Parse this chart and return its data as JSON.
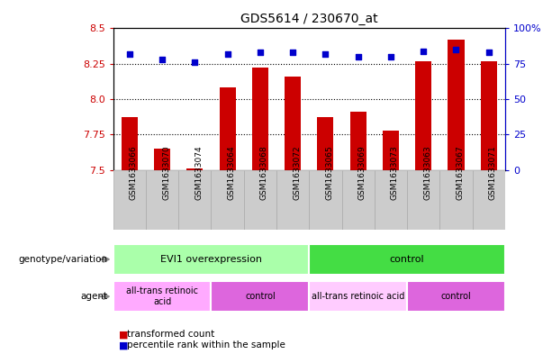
{
  "title": "GDS5614 / 230670_at",
  "samples": [
    "GSM1633066",
    "GSM1633070",
    "GSM1633074",
    "GSM1633064",
    "GSM1633068",
    "GSM1633072",
    "GSM1633065",
    "GSM1633069",
    "GSM1633073",
    "GSM1633063",
    "GSM1633067",
    "GSM1633071"
  ],
  "transformed_count": [
    7.87,
    7.65,
    7.51,
    8.08,
    8.22,
    8.16,
    7.87,
    7.91,
    7.78,
    8.27,
    8.42,
    8.27
  ],
  "percentile_rank": [
    82,
    78,
    76,
    82,
    83,
    83,
    82,
    80,
    80,
    84,
    85,
    83
  ],
  "ylim_left": [
    7.5,
    8.5
  ],
  "ylim_right": [
    0,
    100
  ],
  "yticks_left": [
    7.5,
    7.75,
    8.0,
    8.25,
    8.5
  ],
  "yticks_right": [
    0,
    25,
    50,
    75,
    100
  ],
  "ytick_labels_right": [
    "0",
    "25",
    "50",
    "75",
    "100%"
  ],
  "grid_values": [
    7.75,
    8.0,
    8.25
  ],
  "bar_color": "#cc0000",
  "scatter_color": "#0000cc",
  "bar_bottom": 7.5,
  "genotype_groups": [
    {
      "label": "EVI1 overexpression",
      "start": 0,
      "end": 6,
      "color": "#aaffaa"
    },
    {
      "label": "control",
      "start": 6,
      "end": 12,
      "color": "#44dd44"
    }
  ],
  "agent_groups": [
    {
      "label": "all-trans retinoic\nacid",
      "start": 0,
      "end": 3,
      "color": "#ffaaff"
    },
    {
      "label": "control",
      "start": 3,
      "end": 6,
      "color": "#dd66dd"
    },
    {
      "label": "all-trans retinoic acid",
      "start": 6,
      "end": 9,
      "color": "#ffccff"
    },
    {
      "label": "control",
      "start": 9,
      "end": 12,
      "color": "#dd66dd"
    }
  ],
  "legend_items": [
    {
      "label": "transformed count",
      "color": "#cc0000"
    },
    {
      "label": "percentile rank within the sample",
      "color": "#0000cc"
    }
  ],
  "left_label_color": "#cc0000",
  "right_label_color": "#0000cc",
  "tick_bg_color": "#cccccc",
  "tick_bg_edge": "#aaaaaa"
}
